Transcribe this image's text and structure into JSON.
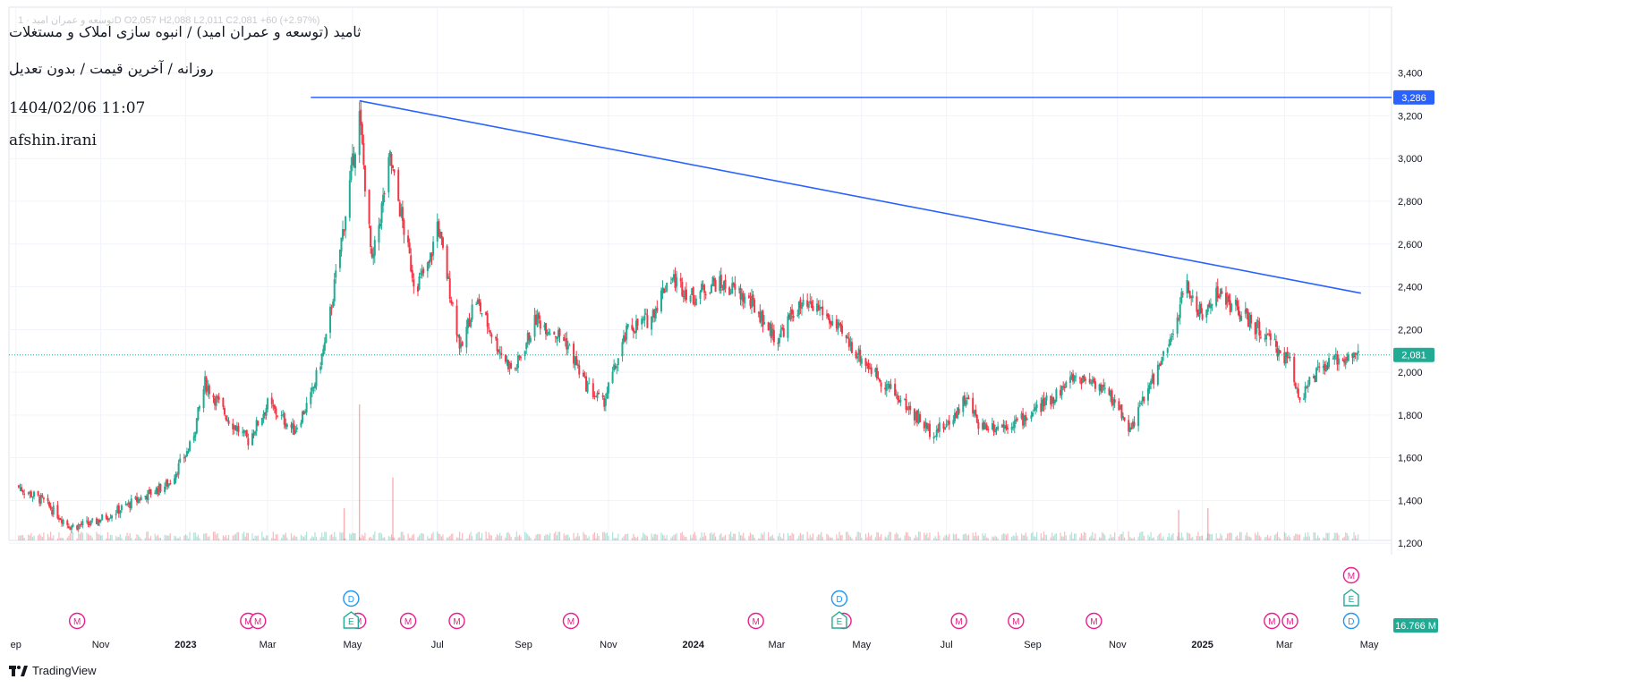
{
  "header": {
    "ohlc_line": "توسعه و عمران امید · 1D  O2,057  H2,088  L2,011  C2,081  +60 (+2.97%)",
    "title": "ثامید (توسعه و عمران امید) / انبوه سازی املاک و مستغلات",
    "subtitle": "روزانه / آخرین قیمت / بدون تعدیل",
    "datetime": "1404/02/06 11:07",
    "author": "afshin.irani"
  },
  "brand": {
    "name": "TradingView"
  },
  "colors": {
    "up": "#22ab94",
    "down": "#f23645",
    "trendline": "#2962ff",
    "last_price": "#22ab94",
    "event_M": "#e91e8c",
    "event_D": "#2196f3",
    "event_E": "#22ab94"
  },
  "chart_data": {
    "type": "candlestick",
    "title": "",
    "xlabel": "",
    "ylabel": "",
    "ylim": [
      1090,
      3480
    ],
    "yticks": [
      1200,
      1400,
      1600,
      1800,
      2000,
      2200,
      2400,
      2600,
      2800,
      3000,
      3200,
      3400
    ],
    "ytick_labels": [
      "1,200",
      "1,400",
      "1,600",
      "1,800",
      "2,000",
      "2,200",
      "2,400",
      "2,600",
      "2,800",
      "3,000",
      "3,200",
      "3,400"
    ],
    "xticks": [
      {
        "date": "2022-09-01",
        "label": "ep"
      },
      {
        "date": "2022-11-01",
        "label": "Nov"
      },
      {
        "date": "2023-01-01",
        "label": "2023"
      },
      {
        "date": "2023-03-01",
        "label": "Mar"
      },
      {
        "date": "2023-05-01",
        "label": "May"
      },
      {
        "date": "2023-07-01",
        "label": "Jul"
      },
      {
        "date": "2023-09-01",
        "label": "Sep"
      },
      {
        "date": "2023-11-01",
        "label": "Nov"
      },
      {
        "date": "2024-01-01",
        "label": "2024"
      },
      {
        "date": "2024-03-01",
        "label": "Mar"
      },
      {
        "date": "2024-05-01",
        "label": "May"
      },
      {
        "date": "2024-07-01",
        "label": "Jul"
      },
      {
        "date": "2024-09-01",
        "label": "Sep"
      },
      {
        "date": "2024-11-01",
        "label": "Nov"
      },
      {
        "date": "2025-01-01",
        "label": "2025"
      },
      {
        "date": "2025-03-01",
        "label": "Mar"
      },
      {
        "date": "2025-05-01",
        "label": "May"
      }
    ],
    "price_path": [
      [
        "2022-09-01",
        1470
      ],
      [
        "2022-09-20",
        1400
      ],
      [
        "2022-10-10",
        1280
      ],
      [
        "2022-10-25",
        1290
      ],
      [
        "2022-11-15",
        1360
      ],
      [
        "2022-12-05",
        1430
      ],
      [
        "2022-12-20",
        1480
      ],
      [
        "2023-01-05",
        1660
      ],
      [
        "2023-01-15",
        1950
      ],
      [
        "2023-02-01",
        1780
      ],
      [
        "2023-02-15",
        1680
      ],
      [
        "2023-03-01",
        1850
      ],
      [
        "2023-03-20",
        1730
      ],
      [
        "2023-04-01",
        1880
      ],
      [
        "2023-04-12",
        2150
      ],
      [
        "2023-04-25",
        2700
      ],
      [
        "2023-05-06",
        3200
      ],
      [
        "2023-05-15",
        2500
      ],
      [
        "2023-05-28",
        3000
      ],
      [
        "2023-06-15",
        2400
      ],
      [
        "2023-06-25",
        2500
      ],
      [
        "2023-07-01",
        2700
      ],
      [
        "2023-07-18",
        2100
      ],
      [
        "2023-07-28",
        2350
      ],
      [
        "2023-08-15",
        2100
      ],
      [
        "2023-08-25",
        2000
      ],
      [
        "2023-09-10",
        2250
      ],
      [
        "2023-10-01",
        2150
      ],
      [
        "2023-10-15",
        1950
      ],
      [
        "2023-10-28",
        1850
      ],
      [
        "2023-11-15",
        2200
      ],
      [
        "2023-12-01",
        2250
      ],
      [
        "2023-12-15",
        2450
      ],
      [
        "2024-01-01",
        2350
      ],
      [
        "2024-01-15",
        2420
      ],
      [
        "2024-02-01",
        2380
      ],
      [
        "2024-02-15",
        2300
      ],
      [
        "2024-03-01",
        2150
      ],
      [
        "2024-03-15",
        2300
      ],
      [
        "2024-04-01",
        2300
      ],
      [
        "2024-04-20",
        2150
      ],
      [
        "2024-05-10",
        2000
      ],
      [
        "2024-06-01",
        1850
      ],
      [
        "2024-06-20",
        1720
      ],
      [
        "2024-07-01",
        1750
      ],
      [
        "2024-07-15",
        1880
      ],
      [
        "2024-07-25",
        1750
      ],
      [
        "2024-08-10",
        1750
      ],
      [
        "2024-08-25",
        1780
      ],
      [
        "2024-09-15",
        1880
      ],
      [
        "2024-10-01",
        1980
      ],
      [
        "2024-10-15",
        1960
      ],
      [
        "2024-11-01",
        1850
      ],
      [
        "2024-11-10",
        1730
      ],
      [
        "2024-11-25",
        1950
      ],
      [
        "2024-12-10",
        2150
      ],
      [
        "2024-12-20",
        2420
      ],
      [
        "2025-01-01",
        2250
      ],
      [
        "2025-01-10",
        2380
      ],
      [
        "2025-01-25",
        2300
      ],
      [
        "2025-02-10",
        2200
      ],
      [
        "2025-02-25",
        2100
      ],
      [
        "2025-03-05",
        2050
      ],
      [
        "2025-03-12",
        1880
      ],
      [
        "2025-03-25",
        2000
      ],
      [
        "2025-04-05",
        2050
      ],
      [
        "2025-04-15",
        2080
      ],
      [
        "2025-04-25",
        2081
      ]
    ],
    "trendlines": [
      {
        "kind": "horizontal",
        "y": 3286,
        "x_start": "2023-04-01",
        "x_end": "2025-05-10"
      },
      {
        "kind": "segment",
        "x1": "2023-05-06",
        "y1": 3270,
        "x2": "2025-04-25",
        "y2": 2370
      }
    ],
    "last_price": {
      "value": 2081,
      "label": "2,081"
    },
    "level_label": {
      "value": 3286,
      "label": "3,286"
    },
    "volume": {
      "label": "16.766 M",
      "spikes": [
        [
          "2023-05-06",
          8.0
        ],
        [
          "2023-05-30",
          3.7
        ],
        [
          "2023-04-25",
          1.9
        ],
        [
          "2025-01-05",
          1.9
        ],
        [
          "2024-12-15",
          1.8
        ]
      ]
    },
    "events": [
      {
        "type": "M",
        "date": "2022-10-15",
        "row": 0
      },
      {
        "type": "M",
        "date": "2023-02-15",
        "row": 0
      },
      {
        "type": "M",
        "date": "2023-02-22",
        "row": 0
      },
      {
        "type": "M",
        "date": "2023-05-05",
        "row": 0
      },
      {
        "type": "M",
        "date": "2023-06-10",
        "row": 0
      },
      {
        "type": "M",
        "date": "2023-07-15",
        "row": 0
      },
      {
        "type": "M",
        "date": "2023-10-05",
        "row": 0
      },
      {
        "type": "M",
        "date": "2024-02-15",
        "row": 0
      },
      {
        "type": "M",
        "date": "2024-04-18",
        "row": 0
      },
      {
        "type": "M",
        "date": "2024-07-10",
        "row": 0
      },
      {
        "type": "M",
        "date": "2024-08-20",
        "row": 0
      },
      {
        "type": "M",
        "date": "2024-10-15",
        "row": 0
      },
      {
        "type": "M",
        "date": "2025-02-20",
        "row": 0
      },
      {
        "type": "M",
        "date": "2025-03-05",
        "row": 0
      },
      {
        "type": "M",
        "date": "2025-04-18",
        "row": 2
      },
      {
        "type": "D",
        "date": "2023-04-30",
        "row": 1
      },
      {
        "type": "D",
        "date": "2024-04-15",
        "row": 1
      },
      {
        "type": "D",
        "date": "2025-04-18",
        "row": 0
      },
      {
        "type": "E",
        "date": "2023-04-30",
        "row": 0
      },
      {
        "type": "E",
        "date": "2024-04-15",
        "row": 0
      },
      {
        "type": "E",
        "date": "2025-04-18",
        "row": 1
      }
    ]
  }
}
